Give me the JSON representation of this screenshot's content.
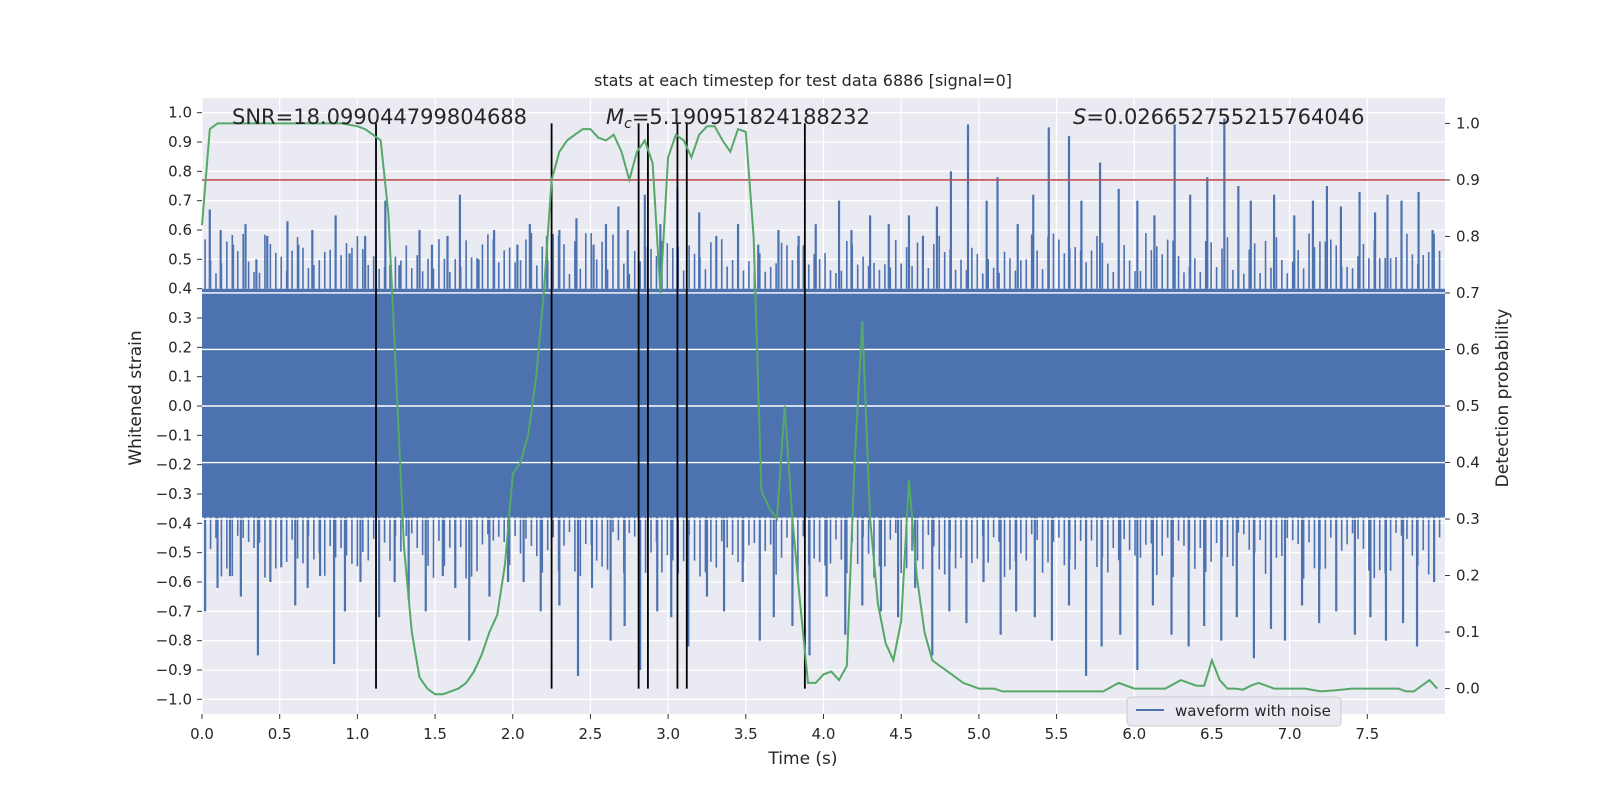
{
  "chart_data": {
    "type": "line",
    "title": "stats at each timestep for test data 6886 [signal=0]",
    "xlabel": "Time (s)",
    "ylabel": "Whitened strain",
    "y2label": "Detection probability",
    "xlim": [
      0.0,
      8.0
    ],
    "ylim": [
      -1.05,
      1.05
    ],
    "y2lim": [
      -0.045,
      1.045
    ],
    "xticks": [
      "0.0",
      "0.5",
      "1.0",
      "1.5",
      "2.0",
      "2.5",
      "3.0",
      "3.5",
      "4.0",
      "4.5",
      "5.0",
      "5.5",
      "6.0",
      "6.5",
      "7.0",
      "7.5"
    ],
    "yticks": [
      "1.0",
      "0.9",
      "0.8",
      "0.7",
      "0.6",
      "0.5",
      "0.4",
      "0.3",
      "0.2",
      "0.1",
      "0.0",
      "−0.1",
      "−0.2",
      "−0.3",
      "−0.4",
      "−0.5",
      "−0.6",
      "−0.7",
      "−0.8",
      "−0.9",
      "−1.0"
    ],
    "y2ticks": [
      "0.0",
      "0.1",
      "0.2",
      "0.3",
      "0.4",
      "0.5",
      "0.6",
      "0.7",
      "0.8",
      "0.9",
      "1.0"
    ],
    "grid": true,
    "legend": {
      "placement": "lower-right",
      "entries": [
        "waveform with noise"
      ]
    },
    "annotations": {
      "snr": "SNR=18.099044799804688",
      "mc_symbol": "M",
      "mc_sub": "c",
      "mc_value": "=5.190951824188232",
      "s_symbol": "S",
      "s_value": "=0.026652755215764046"
    },
    "colors": {
      "waveform": "#4c72b0",
      "probability": "#55a868",
      "threshold": "#c44e52",
      "markers": "#000000",
      "plot_bg": "#eaeaf2",
      "grid": "#ffffff"
    },
    "threshold_probability": 0.9,
    "vertical_markers_time": [
      1.12,
      2.25,
      2.81,
      2.87,
      3.06,
      3.12,
      3.88
    ],
    "waveform": {
      "name": "waveform with noise",
      "band_y": [
        -0.38,
        0.4
      ],
      "peak_times": [
        0.05,
        0.12,
        0.2,
        0.28,
        0.35,
        0.42,
        0.55,
        0.62,
        0.71,
        0.86,
        0.95,
        1.05,
        1.18,
        1.27,
        1.4,
        1.48,
        1.58,
        1.66,
        1.78,
        1.88,
        2.03,
        2.11,
        2.22,
        2.3,
        2.41,
        2.52,
        2.6,
        2.68,
        2.74,
        2.85,
        2.95,
        3.06,
        3.2,
        3.31,
        3.45,
        3.58,
        3.71,
        3.84,
        3.95,
        4.1,
        4.18,
        4.3,
        4.42,
        4.55,
        4.64,
        4.73,
        4.82,
        4.93,
        5.05,
        5.12,
        5.25,
        5.35,
        5.45,
        5.58,
        5.66,
        5.78,
        5.9,
        6.02,
        6.13,
        6.26,
        6.36,
        6.47,
        6.58,
        6.67,
        6.75,
        6.9,
        7.03,
        7.15,
        7.24,
        7.33,
        7.45,
        7.55,
        7.63,
        7.72,
        7.83,
        7.92
      ],
      "peak_values": [
        0.67,
        0.6,
        0.55,
        0.62,
        0.5,
        0.58,
        0.63,
        0.55,
        0.6,
        0.65,
        0.52,
        0.58,
        0.7,
        0.48,
        0.6,
        0.55,
        0.58,
        0.72,
        0.5,
        0.6,
        0.55,
        0.62,
        0.58,
        0.6,
        0.64,
        0.55,
        0.62,
        0.68,
        0.6,
        0.72,
        0.62,
        0.74,
        0.66,
        0.58,
        0.62,
        0.55,
        0.6,
        0.58,
        0.62,
        0.7,
        0.6,
        0.65,
        0.62,
        0.65,
        0.58,
        0.68,
        0.8,
        0.96,
        0.7,
        0.78,
        0.62,
        0.72,
        0.95,
        0.92,
        0.7,
        0.83,
        0.74,
        0.7,
        0.65,
        0.96,
        0.72,
        0.78,
        0.98,
        0.75,
        0.7,
        0.72,
        0.65,
        0.7,
        0.75,
        0.68,
        0.73,
        0.66,
        0.72,
        0.7,
        0.73,
        0.6
      ],
      "trough_times": [
        0.02,
        0.1,
        0.18,
        0.25,
        0.36,
        0.44,
        0.51,
        0.6,
        0.68,
        0.76,
        0.85,
        0.92,
        1.02,
        1.14,
        1.24,
        1.33,
        1.44,
        1.55,
        1.63,
        1.72,
        1.85,
        1.97,
        2.07,
        2.18,
        2.3,
        2.42,
        2.51,
        2.63,
        2.72,
        2.82,
        2.93,
        3.02,
        3.13,
        3.25,
        3.36,
        3.48,
        3.59,
        3.68,
        3.8,
        3.91,
        4.02,
        4.14,
        4.25,
        4.37,
        4.48,
        4.59,
        4.7,
        4.81,
        4.92,
        5.03,
        5.14,
        5.24,
        5.36,
        5.47,
        5.58,
        5.69,
        5.79,
        5.91,
        6.02,
        6.12,
        6.24,
        6.35,
        6.45,
        6.56,
        6.66,
        6.77,
        6.88,
        6.97,
        7.08,
        7.19,
        7.3,
        7.42,
        7.52,
        7.62,
        7.73,
        7.82,
        7.93
      ],
      "trough_values": [
        -0.7,
        -0.62,
        -0.58,
        -0.65,
        -0.85,
        -0.6,
        -0.55,
        -0.68,
        -0.62,
        -0.58,
        -0.88,
        -0.7,
        -0.6,
        -0.72,
        -0.6,
        -0.66,
        -0.7,
        -0.58,
        -0.62,
        -0.8,
        -0.65,
        -0.6,
        -0.6,
        -0.7,
        -0.68,
        -0.92,
        -0.62,
        -0.8,
        -0.75,
        -0.9,
        -0.7,
        -0.72,
        -0.82,
        -0.65,
        -0.7,
        -0.6,
        -0.8,
        -0.72,
        -0.75,
        -0.85,
        -0.65,
        -0.78,
        -0.68,
        -0.7,
        -0.72,
        -0.62,
        -0.85,
        -0.7,
        -0.74,
        -0.6,
        -0.78,
        -0.7,
        -0.72,
        -0.8,
        -0.68,
        -0.92,
        -0.82,
        -0.78,
        -0.9,
        -0.68,
        -0.78,
        -0.82,
        -0.75,
        -0.8,
        -0.72,
        -0.86,
        -0.76,
        -0.8,
        -0.68,
        -0.74,
        -0.7,
        -0.78,
        -0.72,
        -0.8,
        -0.74,
        -0.82,
        -0.6
      ]
    },
    "probability": {
      "x": [
        0.0,
        0.05,
        0.1,
        0.2,
        0.3,
        0.4,
        0.5,
        0.6,
        0.7,
        0.8,
        0.9,
        1.0,
        1.05,
        1.1,
        1.15,
        1.2,
        1.25,
        1.3,
        1.35,
        1.4,
        1.45,
        1.5,
        1.55,
        1.6,
        1.65,
        1.7,
        1.75,
        1.8,
        1.85,
        1.9,
        1.95,
        2.0,
        2.05,
        2.1,
        2.15,
        2.2,
        2.25,
        2.3,
        2.35,
        2.4,
        2.45,
        2.5,
        2.55,
        2.6,
        2.65,
        2.7,
        2.75,
        2.8,
        2.85,
        2.9,
        2.95,
        3.0,
        3.05,
        3.1,
        3.15,
        3.2,
        3.25,
        3.3,
        3.35,
        3.4,
        3.45,
        3.5,
        3.55,
        3.6,
        3.65,
        3.7,
        3.75,
        3.8,
        3.85,
        3.9,
        3.95,
        4.0,
        4.05,
        4.1,
        4.15,
        4.2,
        4.25,
        4.3,
        4.35,
        4.4,
        4.45,
        4.5,
        4.55,
        4.6,
        4.65,
        4.7,
        4.75,
        4.8,
        4.85,
        4.9,
        4.95,
        5.0,
        5.05,
        5.1,
        5.15,
        5.2,
        5.3,
        5.4,
        5.5,
        5.6,
        5.7,
        5.8,
        5.9,
        6.0,
        6.1,
        6.2,
        6.3,
        6.4,
        6.45,
        6.5,
        6.55,
        6.6,
        6.65,
        6.7,
        6.75,
        6.8,
        6.85,
        6.9,
        6.95,
        7.0,
        7.05,
        7.1,
        7.2,
        7.3,
        7.4,
        7.5,
        7.6,
        7.7,
        7.75,
        7.8,
        7.85,
        7.9,
        7.95
      ],
      "y": [
        0.82,
        0.99,
        1.0,
        1.0,
        1.0,
        1.0,
        1.0,
        1.0,
        1.0,
        1.0,
        1.0,
        0.995,
        0.99,
        0.98,
        0.97,
        0.84,
        0.55,
        0.25,
        0.1,
        0.02,
        0.0,
        -0.01,
        -0.01,
        -0.005,
        0.0,
        0.01,
        0.03,
        0.06,
        0.1,
        0.13,
        0.22,
        0.38,
        0.4,
        0.45,
        0.55,
        0.7,
        0.9,
        0.95,
        0.97,
        0.98,
        0.99,
        0.99,
        0.975,
        0.97,
        0.98,
        0.95,
        0.9,
        0.95,
        0.97,
        0.93,
        0.7,
        0.94,
        0.98,
        0.97,
        0.94,
        0.98,
        0.995,
        0.995,
        0.97,
        0.95,
        0.99,
        0.985,
        0.8,
        0.35,
        0.32,
        0.3,
        0.5,
        0.3,
        0.15,
        0.01,
        0.01,
        0.025,
        0.03,
        0.015,
        0.04,
        0.4,
        0.65,
        0.3,
        0.15,
        0.08,
        0.05,
        0.12,
        0.37,
        0.2,
        0.1,
        0.05,
        0.04,
        0.03,
        0.02,
        0.01,
        0.005,
        0.0,
        0.0,
        0.0,
        -0.005,
        -0.005,
        -0.005,
        -0.005,
        -0.005,
        -0.005,
        -0.005,
        -0.005,
        0.01,
        0.0,
        0.0,
        0.0,
        0.015,
        0.005,
        0.005,
        0.05,
        0.015,
        0.0,
        0.0,
        -0.002,
        0.005,
        0.01,
        0.005,
        0.0,
        0.0,
        0.0,
        0.0,
        0.0,
        -0.005,
        -0.003,
        0.0,
        0.0,
        0.0,
        0.0,
        -0.005,
        -0.005,
        0.005,
        0.015,
        0.0
      ]
    }
  }
}
